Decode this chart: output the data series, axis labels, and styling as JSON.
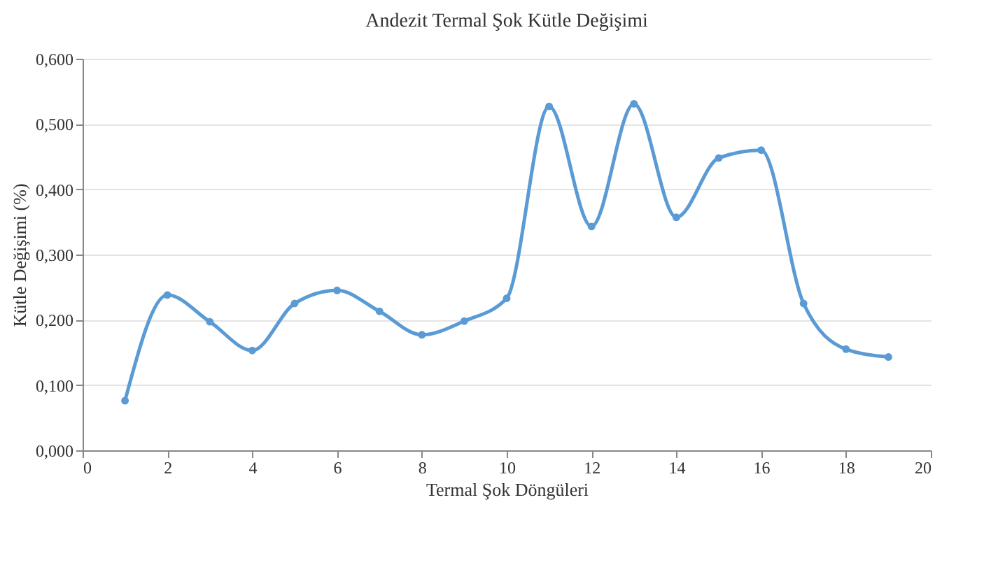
{
  "chart_data": {
    "type": "line",
    "title": "Andezit  Termal  Şok Kütle  Değişimi",
    "xlabel": "Termal  Şok Döngüleri",
    "ylabel": "Kütle  Değişimi  (%)",
    "x": [
      1,
      2,
      3,
      4,
      5,
      6,
      7,
      8,
      9,
      10,
      11,
      12,
      13,
      14,
      15,
      16,
      17,
      18,
      19
    ],
    "series": [
      {
        "color": "#5b9bd5",
        "values": [
          0.076,
          0.238,
          0.197,
          0.153,
          0.225,
          0.245,
          0.213,
          0.177,
          0.198,
          0.233,
          0.527,
          0.343,
          0.531,
          0.357,
          0.448,
          0.46,
          0.225,
          0.155,
          0.143
        ]
      }
    ],
    "xlim": [
      0,
      20
    ],
    "xticks": [
      0,
      2,
      4,
      6,
      8,
      10,
      12,
      14,
      16,
      18,
      20
    ],
    "ylim": [
      0,
      0.6
    ],
    "yticks": [
      {
        "value": 0,
        "label": "0,000"
      },
      {
        "value": 0.1,
        "label": "0,100"
      },
      {
        "value": 0.2,
        "label": "0,200"
      },
      {
        "value": 0.3,
        "label": "0,300"
      },
      {
        "value": 0.4,
        "label": "0,400"
      },
      {
        "value": 0.5,
        "label": "0,500"
      },
      {
        "value": 0.6,
        "label": "0,600"
      }
    ],
    "grid": "y",
    "marker": "circle",
    "line_style": "solid"
  }
}
